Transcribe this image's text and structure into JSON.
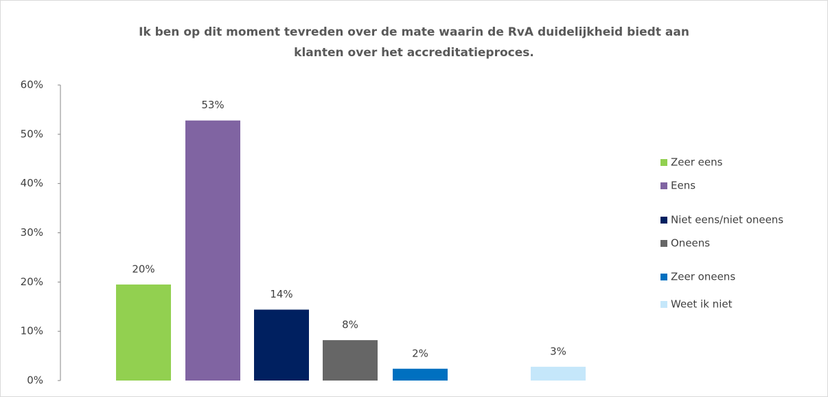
{
  "chart_data": {
    "type": "bar",
    "title": [
      "Ik ben op dit moment tevreden over de mate waarin de RvA duidelijkheid biedt aan",
      "klanten over het accreditatieproces."
    ],
    "series": [
      {
        "name": "Zeer eens",
        "color": "#92d050",
        "values": [
          19.5
        ],
        "value_labels": [
          "20%"
        ]
      },
      {
        "name": "Eens",
        "color": "#8064a2",
        "values": [
          52.8
        ],
        "value_labels": [
          "53%"
        ]
      },
      {
        "name": "Niet eens/niet oneens",
        "color": "#002060",
        "values": [
          14.4
        ],
        "value_labels": [
          "14%"
        ]
      },
      {
        "name": "Oneens",
        "color": "#666666",
        "values": [
          8.2
        ],
        "value_labels": [
          "8%"
        ]
      },
      {
        "name": "Zeer oneens",
        "color": "#0070c0",
        "values": [
          2.4
        ],
        "value_labels": [
          "2%"
        ]
      },
      {
        "name": "Weet ik niet",
        "color": "#c5e7fa",
        "values": [
          2.8
        ],
        "value_labels": [
          "3%"
        ]
      }
    ],
    "ylim": [
      0,
      60
    ],
    "yticks": [
      {
        "value": 0,
        "label": "0%"
      },
      {
        "value": 10,
        "label": "10%"
      },
      {
        "value": 20,
        "label": "20%"
      },
      {
        "value": 30,
        "label": "30%"
      },
      {
        "value": 40,
        "label": "40%"
      },
      {
        "value": 50,
        "label": "50%"
      },
      {
        "value": 60,
        "label": "60%"
      }
    ],
    "legend": "right"
  }
}
